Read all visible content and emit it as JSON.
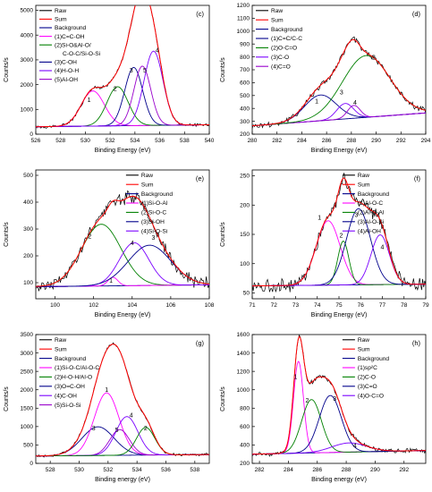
{
  "colors": {
    "raw": "#000000",
    "sum": "#ff0000",
    "background": "#00008b",
    "frame": "#000000"
  },
  "chart_data": [
    {
      "panel": "(c)",
      "type": "line",
      "xlabel": "Binding Energy (eV)",
      "ylabel": "Counts/s",
      "xlim": [
        526,
        540
      ],
      "ylim": [
        0,
        5200
      ],
      "xticks": [
        526,
        528,
        530,
        532,
        534,
        536,
        538,
        540
      ],
      "yticks": [
        0,
        1000,
        2000,
        3000,
        4000,
        5000
      ],
      "legend_position": "top-left",
      "legend": [
        "Raw",
        "Sum",
        "Background",
        "(1)C=C-OH",
        "(2)Si-O&Al-O/",
        "C-O-C/Si-O-Si",
        "(3)C-OH",
        "(4)H-O-H",
        "(5)Al-OH"
      ],
      "legend_colors": [
        "#000000",
        "#ff0000",
        "#00008b",
        "#ff00ff",
        "#008000",
        "#008000",
        "#00008b",
        "#7a00ff",
        "#9900cc"
      ],
      "background": {
        "start": 300,
        "end": 380
      },
      "peaks": [
        {
          "label": "1",
          "center": 530.6,
          "height": 1420,
          "fwhm": 2.2,
          "color": "#ff00ff",
          "label_x": 530.3,
          "label_y": 1300
        },
        {
          "label": "2",
          "center": 532.6,
          "height": 1580,
          "fwhm": 2.0,
          "color": "#008000",
          "label_x": 532.4,
          "label_y": 1750
        },
        {
          "label": "3",
          "center": 533.9,
          "height": 2350,
          "fwhm": 1.7,
          "color": "#00008b",
          "label_x": 533.7,
          "label_y": 2500
        },
        {
          "label": "5",
          "center": 534.6,
          "height": 2400,
          "fwhm": 1.6,
          "color": "#9900cc",
          "label_x": 534.8,
          "label_y": 2500
        },
        {
          "label": "4",
          "center": 535.5,
          "height": 3000,
          "fwhm": 1.8,
          "color": "#7a00ff",
          "label_x": 535.8,
          "label_y": 3300
        }
      ],
      "raw_noise": 55
    },
    {
      "panel": "(d)",
      "type": "line",
      "xlabel": "Binding Energy (eV)",
      "ylabel": "Counts/s",
      "xlim": [
        280,
        294
      ],
      "ylim": [
        200,
        1200
      ],
      "xticks": [
        280,
        282,
        284,
        286,
        288,
        290,
        292,
        294
      ],
      "yticks": [
        200,
        300,
        400,
        500,
        600,
        700,
        800,
        900,
        1000,
        1100,
        1200
      ],
      "legend_position": "top-left",
      "legend": [
        "Raw",
        "Sum",
        "Background",
        "(1)C=C/C-C",
        "(2)O-C=O",
        "(3)C-O",
        "(4)C=O"
      ],
      "legend_colors": [
        "#000000",
        "#ff0000",
        "#00008b",
        "#00008b",
        "#008000",
        "#7a00ff",
        "#9900cc"
      ],
      "background": {
        "start": 265,
        "end": 365
      },
      "peaks": [
        {
          "label": "1",
          "center": 285.5,
          "height": 200,
          "fwhm": 3.0,
          "color": "#00008b",
          "label_x": 285.2,
          "label_y": 440
        },
        {
          "label": "3",
          "center": 287.5,
          "height": 120,
          "fwhm": 1.6,
          "color": "#7a00ff",
          "label_x": 287.2,
          "label_y": 510
        },
        {
          "label": "4",
          "center": 288.2,
          "height": 100,
          "fwhm": 1.2,
          "color": "#9900cc",
          "label_x": 288.3,
          "label_y": 430
        },
        {
          "label": "2",
          "center": 289.2,
          "height": 480,
          "fwhm": 4.5,
          "color": "#008000",
          "label_x": 289.8,
          "label_y": 780
        }
      ],
      "raw_noise": 22
    },
    {
      "panel": "(e)",
      "type": "line",
      "xlabel": "Binding Energy (eV)",
      "ylabel": "Counts/s",
      "xlim": [
        99,
        108
      ],
      "ylim": [
        40,
        520
      ],
      "xticks": [
        100,
        102,
        104,
        106,
        108
      ],
      "yticks": [
        100,
        200,
        300,
        400,
        500
      ],
      "legend_position": "top-right",
      "legend": [
        "Raw",
        "Sum",
        "Background",
        "(1)Si-O-Al",
        "(2)Si-O-C",
        "(3)Si-OH",
        "(4)Si-O-Si"
      ],
      "legend_colors": [
        "#000000",
        "#ff0000",
        "#00008b",
        "#ff00ff",
        "#008000",
        "#00008b",
        "#7a00ff"
      ],
      "background": {
        "start": 85,
        "end": 92
      },
      "peaks": [
        {
          "label": "2",
          "center": 102.4,
          "height": 230,
          "fwhm": 2.4,
          "color": "#008000",
          "label_x": 101.8,
          "label_y": 265
        },
        {
          "label": "1",
          "center": 103.0,
          "height": 32,
          "fwhm": 0.6,
          "color": "#ff00ff",
          "label_x": 102.9,
          "label_y": 100
        },
        {
          "label": "4",
          "center": 104.1,
          "height": 160,
          "fwhm": 1.8,
          "color": "#7a00ff",
          "label_x": 104.0,
          "label_y": 240
        },
        {
          "label": "3",
          "center": 104.9,
          "height": 150,
          "fwhm": 2.6,
          "color": "#00008b",
          "label_x": 105.1,
          "label_y": 260
        }
      ],
      "raw_noise": 20
    },
    {
      "panel": "(f)",
      "type": "line",
      "xlabel": "Binding Energy (eV)",
      "ylabel": "Counts/s",
      "xlim": [
        71,
        79
      ],
      "ylim": [
        40,
        260
      ],
      "xticks": [
        71,
        72,
        73,
        74,
        75,
        76,
        77,
        78,
        79
      ],
      "yticks": [
        50,
        100,
        150,
        200,
        250
      ],
      "legend_position": "top-right",
      "legend": [
        "Raw",
        "Sum",
        "Background",
        "(1)Al-O-C",
        "(2)Al-O-Al",
        "(3)Al-O-Si",
        "(4)Al-OH"
      ],
      "legend_colors": [
        "#000000",
        "#ff0000",
        "#00008b",
        "#ff00ff",
        "#008000",
        "#00008b",
        "#7a00ff"
      ],
      "background": {
        "start": 62,
        "end": 65
      },
      "peaks": [
        {
          "label": "1",
          "center": 74.5,
          "height": 110,
          "fwhm": 1.3,
          "color": "#ff00ff",
          "label_x": 74.1,
          "label_y": 175
        },
        {
          "label": "2",
          "center": 75.2,
          "height": 75,
          "fwhm": 0.6,
          "color": "#008000",
          "label_x": 75.1,
          "label_y": 145
        },
        {
          "label": "3",
          "center": 75.9,
          "height": 130,
          "fwhm": 1.3,
          "color": "#00008b",
          "label_x": 75.8,
          "label_y": 180
        },
        {
          "label": "4",
          "center": 76.9,
          "height": 85,
          "fwhm": 1.0,
          "color": "#7a00ff",
          "label_x": 77.0,
          "label_y": 125
        }
      ],
      "raw_noise": 10
    },
    {
      "panel": "(g)",
      "type": "line",
      "xlabel": "Binding energy (eV)",
      "ylabel": "Counts/s",
      "xlim": [
        527,
        539
      ],
      "ylim": [
        0,
        3500
      ],
      "xticks": [
        528,
        530,
        532,
        534,
        536,
        538
      ],
      "yticks": [
        0,
        500,
        1000,
        1500,
        2000,
        2500,
        3000,
        3500
      ],
      "legend_position": "top-left",
      "legend": [
        "Raw",
        "Sum",
        "Background",
        "(1)Si-O-C/Al-O-C",
        "(2)H-O-H/Al-O",
        "(3)O=C-OH",
        "(4)C-OH",
        "(5)Si-O-Si"
      ],
      "legend_colors": [
        "#000000",
        "#ff0000",
        "#00008b",
        "#ff00ff",
        "#008000",
        "#00008b",
        "#7a00ff",
        "#9900cc"
      ],
      "background": {
        "start": 200,
        "end": 240
      },
      "peaks": [
        {
          "label": "3",
          "center": 531.3,
          "height": 780,
          "fwhm": 2.6,
          "color": "#00008b",
          "label_x": 531.0,
          "label_y": 900
        },
        {
          "label": "1",
          "center": 531.9,
          "height": 1700,
          "fwhm": 2.0,
          "color": "#ff00ff",
          "label_x": 531.9,
          "label_y": 1950
        },
        {
          "label": "5",
          "center": 532.8,
          "height": 700,
          "fwhm": 1.6,
          "color": "#9900cc",
          "label_x": 532.6,
          "label_y": 850
        },
        {
          "label": "4",
          "center": 533.3,
          "height": 1050,
          "fwhm": 1.8,
          "color": "#7a00ff",
          "label_x": 533.6,
          "label_y": 1250
        },
        {
          "label": "2",
          "center": 534.6,
          "height": 750,
          "fwhm": 1.5,
          "color": "#008000",
          "label_x": 534.6,
          "label_y": 900
        }
      ],
      "raw_noise": 30
    },
    {
      "panel": "(h)",
      "type": "line",
      "xlabel": "Binding energy (eV)",
      "ylabel": "Counts/s",
      "xlim": [
        281.5,
        293.5
      ],
      "ylim": [
        200,
        1600
      ],
      "xticks": [
        282,
        284,
        286,
        288,
        290,
        292
      ],
      "yticks": [
        200,
        400,
        600,
        800,
        1000,
        1200,
        1400,
        1600
      ],
      "legend_position": "top-right",
      "legend": [
        "Raw",
        "Sum",
        "Background",
        "(1)sp²C",
        "(2)C-O",
        "(3)C=O",
        "(4)O-C=O"
      ],
      "legend_colors": [
        "#000000",
        "#ff0000",
        "#00008b",
        "#ff00ff",
        "#008000",
        "#00008b",
        "#7a00ff"
      ],
      "background": {
        "start": 300,
        "end": 340
      },
      "peaks": [
        {
          "label": "1",
          "center": 284.7,
          "height": 1000,
          "fwhm": 0.8,
          "color": "#ff00ff",
          "label_x": 284.5,
          "label_y": 1120
        },
        {
          "label": "2",
          "center": 285.6,
          "height": 580,
          "fwhm": 1.6,
          "color": "#008000",
          "label_x": 285.3,
          "label_y": 860
        },
        {
          "label": "3",
          "center": 286.9,
          "height": 620,
          "fwhm": 1.8,
          "color": "#00008b",
          "label_x": 287.2,
          "label_y": 880
        },
        {
          "label": "4",
          "center": 288.2,
          "height": 100,
          "fwhm": 2.8,
          "color": "#7a00ff",
          "label_x": 288.6,
          "label_y": 370
        }
      ],
      "raw_noise": 22
    }
  ]
}
